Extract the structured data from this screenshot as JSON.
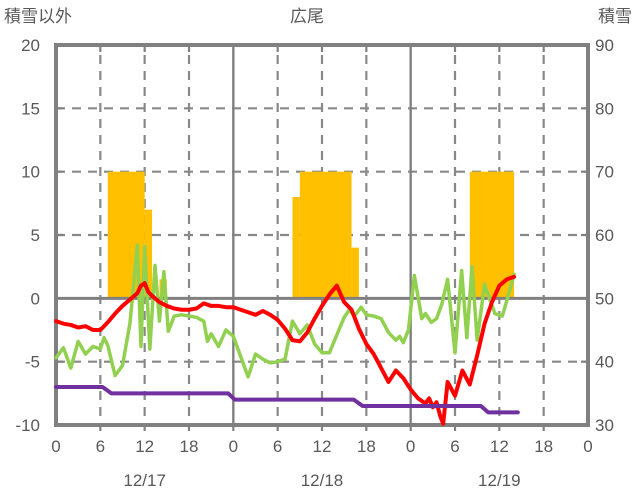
{
  "header": {
    "left_axis_title": "積雪以外",
    "chart_title": "広尾",
    "right_axis_title": "積雪"
  },
  "colors": {
    "text": "#595959",
    "border": "#808080",
    "grid_dash": "#888888",
    "zero_line": "#808080",
    "background": "#FFFFFF",
    "bar": "#FFC000",
    "red_line": "#FF0000",
    "green_line": "#92D050",
    "purple_line": "#7030A0"
  },
  "chart_data": {
    "type": "combo",
    "title": "広尾",
    "x_axis": {
      "total_hours": 72,
      "tick_interval_hours": 6,
      "hour_tick_labels": [
        "0",
        "6",
        "12",
        "18",
        "0",
        "6",
        "12",
        "18",
        "0",
        "6",
        "12",
        "18",
        "0"
      ],
      "day_labels": [
        "12/17",
        "12/18",
        "12/19"
      ],
      "day_boundaries_hours": [
        24,
        48
      ]
    },
    "left_axis": {
      "title": "積雪以外",
      "min": -10,
      "max": 20,
      "ticks": [
        20,
        15,
        10,
        5,
        0,
        -5,
        -10
      ]
    },
    "right_axis": {
      "title": "積雪",
      "min": 30,
      "max": 90,
      "ticks": [
        90,
        80,
        70,
        60,
        50,
        40,
        30
      ]
    },
    "grid": {
      "horizontal_dashed_at": [
        15,
        10,
        5,
        -5
      ],
      "solid_zero_line_at": 0,
      "vertical_dashed_every_hours": 6
    },
    "series": [
      {
        "name": "sunshine-bars",
        "type": "bar",
        "axis": "left",
        "color": "#FFC000",
        "segments": [
          {
            "start_hour": 7,
            "end_hour": 12,
            "value": 10
          },
          {
            "start_hour": 12,
            "end_hour": 13,
            "value": 7
          },
          {
            "start_hour": 14,
            "end_hour": 15,
            "value": 1.5
          },
          {
            "start_hour": 32,
            "end_hour": 33,
            "value": 8
          },
          {
            "start_hour": 33,
            "end_hour": 40,
            "value": 10
          },
          {
            "start_hour": 40,
            "end_hour": 41,
            "value": 4
          },
          {
            "start_hour": 56,
            "end_hour": 62,
            "value": 10
          }
        ]
      },
      {
        "name": "red-line",
        "type": "line",
        "axis": "left",
        "color": "#FF0000",
        "stroke_width": 4,
        "points": [
          [
            0,
            -1.8
          ],
          [
            1,
            -2.0
          ],
          [
            2,
            -2.1
          ],
          [
            3,
            -2.3
          ],
          [
            4,
            -2.2
          ],
          [
            5,
            -2.5
          ],
          [
            6,
            -2.5
          ],
          [
            7,
            -1.9
          ],
          [
            8,
            -1.2
          ],
          [
            9,
            -0.6
          ],
          [
            10,
            -0.1
          ],
          [
            11,
            0.4
          ],
          [
            11.5,
            1.0
          ],
          [
            12,
            1.2
          ],
          [
            12.5,
            0.5
          ],
          [
            13,
            0.2
          ],
          [
            14,
            -0.3
          ],
          [
            15,
            -0.6
          ],
          [
            16,
            -0.8
          ],
          [
            17,
            -0.9
          ],
          [
            18,
            -0.9
          ],
          [
            19,
            -0.8
          ],
          [
            20,
            -0.4
          ],
          [
            21,
            -0.6
          ],
          [
            22,
            -0.6
          ],
          [
            23,
            -0.7
          ],
          [
            24,
            -0.7
          ],
          [
            25,
            -0.9
          ],
          [
            26,
            -1.1
          ],
          [
            27,
            -1.3
          ],
          [
            28,
            -1.0
          ],
          [
            29,
            -1.3
          ],
          [
            30,
            -1.7
          ],
          [
            31,
            -2.4
          ],
          [
            32,
            -3.3
          ],
          [
            33,
            -3.4
          ],
          [
            34,
            -2.7
          ],
          [
            35,
            -1.6
          ],
          [
            36,
            -0.6
          ],
          [
            37,
            0.3
          ],
          [
            38,
            1.0
          ],
          [
            39,
            -0.3
          ],
          [
            40,
            -0.9
          ],
          [
            41,
            -2.4
          ],
          [
            42,
            -3.6
          ],
          [
            43,
            -4.4
          ],
          [
            44,
            -5.5
          ],
          [
            45,
            -6.6
          ],
          [
            46,
            -5.7
          ],
          [
            47,
            -6.3
          ],
          [
            48,
            -7.2
          ],
          [
            49,
            -7.9
          ],
          [
            50,
            -8.3
          ],
          [
            50.5,
            -7.9
          ],
          [
            51,
            -8.6
          ],
          [
            51.5,
            -8.2
          ],
          [
            52,
            -9.3
          ],
          [
            52.4,
            -9.9
          ],
          [
            53,
            -6.6
          ],
          [
            54,
            -7.7
          ],
          [
            55,
            -5.7
          ],
          [
            56,
            -6.8
          ],
          [
            57,
            -4.5
          ],
          [
            58,
            -2.0
          ],
          [
            59,
            -0.3
          ],
          [
            60,
            1.0
          ],
          [
            61,
            1.5
          ],
          [
            62,
            1.7
          ]
        ]
      },
      {
        "name": "green-line",
        "type": "line",
        "axis": "left",
        "color": "#92D050",
        "stroke_width": 3.5,
        "points": [
          [
            0,
            -4.7
          ],
          [
            1,
            -3.9
          ],
          [
            2,
            -5.5
          ],
          [
            3,
            -3.4
          ],
          [
            4,
            -4.4
          ],
          [
            5,
            -3.8
          ],
          [
            6,
            -4.0
          ],
          [
            6.5,
            -3.1
          ],
          [
            7,
            -3.7
          ],
          [
            8,
            -6.1
          ],
          [
            9,
            -5.3
          ],
          [
            10,
            -2.0
          ],
          [
            10.5,
            1.0
          ],
          [
            11,
            4.2
          ],
          [
            11.5,
            -3.8
          ],
          [
            12,
            4.1
          ],
          [
            12.7,
            -4.0
          ],
          [
            13.4,
            2.6
          ],
          [
            14,
            -1.8
          ],
          [
            14.6,
            2.1
          ],
          [
            15.2,
            -2.6
          ],
          [
            16,
            -1.4
          ],
          [
            17,
            -1.3
          ],
          [
            18,
            -1.4
          ],
          [
            19,
            -1.5
          ],
          [
            20,
            -1.8
          ],
          [
            20.5,
            -3.4
          ],
          [
            21,
            -2.8
          ],
          [
            22,
            -3.8
          ],
          [
            23,
            -2.5
          ],
          [
            24,
            -3.0
          ],
          [
            25,
            -4.6
          ],
          [
            26,
            -6.2
          ],
          [
            27,
            -4.4
          ],
          [
            28,
            -4.8
          ],
          [
            29,
            -5.1
          ],
          [
            30,
            -5.0
          ],
          [
            31,
            -4.8
          ],
          [
            32,
            -1.8
          ],
          [
            33,
            -2.8
          ],
          [
            34,
            -2.1
          ],
          [
            35,
            -3.6
          ],
          [
            36,
            -4.3
          ],
          [
            37,
            -4.3
          ],
          [
            38,
            -2.9
          ],
          [
            39,
            -1.5
          ],
          [
            39.7,
            -0.9
          ],
          [
            40.4,
            -1.4
          ],
          [
            41.3,
            -0.7
          ],
          [
            42,
            -1.3
          ],
          [
            43,
            -1.4
          ],
          [
            44,
            -1.6
          ],
          [
            45,
            -2.7
          ],
          [
            46,
            -3.3
          ],
          [
            46.5,
            -3.0
          ],
          [
            47,
            -3.5
          ],
          [
            47.7,
            -2.5
          ],
          [
            48.5,
            1.8
          ],
          [
            49.5,
            -1.6
          ],
          [
            50,
            -1.2
          ],
          [
            50.8,
            -1.9
          ],
          [
            51.5,
            -1.6
          ],
          [
            52.2,
            -0.5
          ],
          [
            53,
            1.5
          ],
          [
            54,
            -4.3
          ],
          [
            54.9,
            2.2
          ],
          [
            55.6,
            -3.1
          ],
          [
            56.3,
            2.5
          ],
          [
            57,
            -3.3
          ],
          [
            58,
            1.1
          ],
          [
            59.4,
            -1.2
          ],
          [
            60.4,
            -1.4
          ],
          [
            61.2,
            0.2
          ],
          [
            62,
            1.9
          ]
        ]
      },
      {
        "name": "purple-line",
        "type": "line",
        "axis": "right",
        "color": "#7030A0",
        "stroke_width": 4,
        "points_cm": [
          [
            0,
            36
          ],
          [
            6.3,
            36
          ],
          [
            7.5,
            35
          ],
          [
            23.3,
            35
          ],
          [
            24.2,
            34
          ],
          [
            40.3,
            34
          ],
          [
            41.5,
            33
          ],
          [
            57.5,
            33
          ],
          [
            58.5,
            32
          ],
          [
            62.5,
            32
          ]
        ]
      }
    ]
  }
}
